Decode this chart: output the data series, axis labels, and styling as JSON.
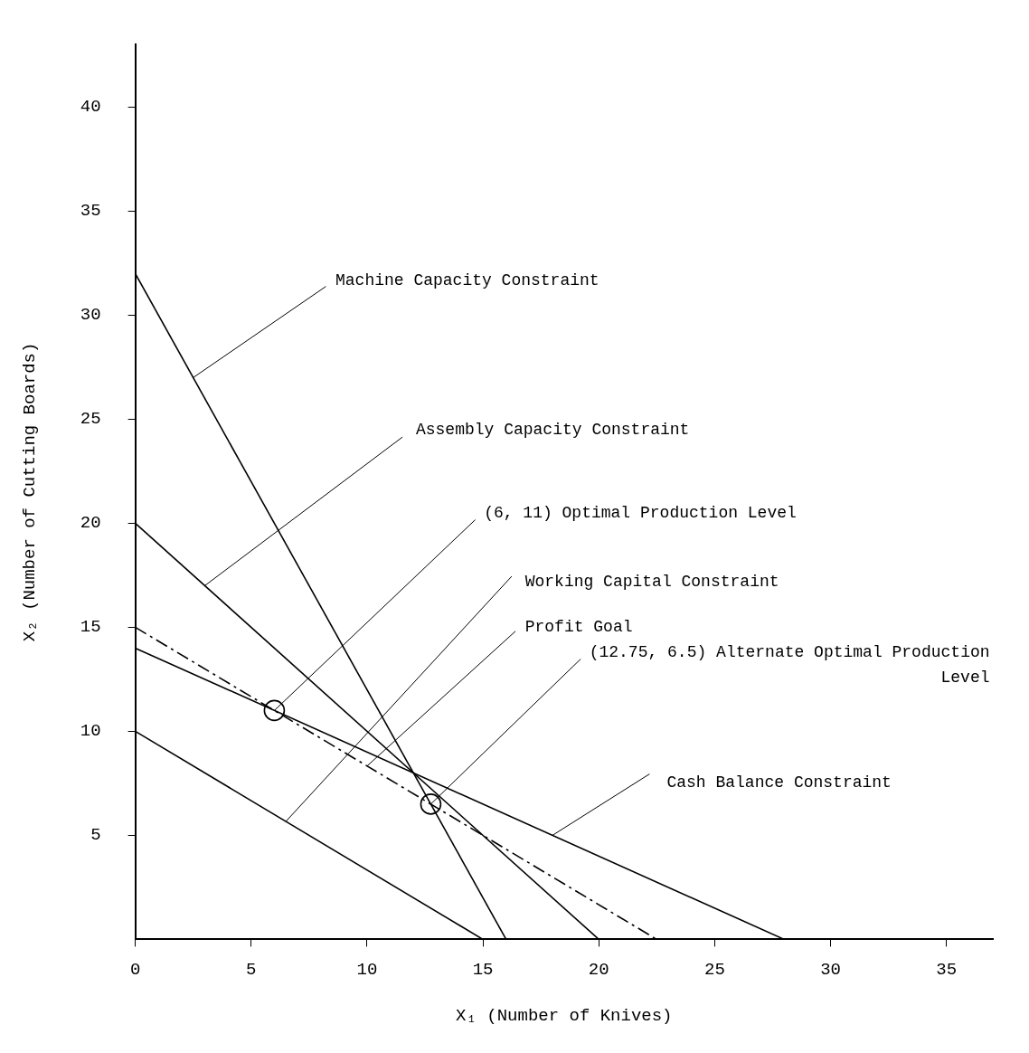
{
  "chart_data": {
    "type": "line",
    "xlabel": "X₁ (Number of Knives)",
    "ylabel": "X₂ (Number of Cutting Boards)",
    "xlim": [
      0,
      37
    ],
    "ylim": [
      0,
      43
    ],
    "xticks": [
      0,
      5,
      10,
      15,
      20,
      25,
      30,
      35
    ],
    "yticks": [
      5,
      10,
      15,
      20,
      25,
      30,
      35,
      40
    ],
    "grid": false,
    "legend": false,
    "marker": "none",
    "line_style": "solid",
    "series": [
      {
        "type": "line",
        "color": "#000000",
        "x": [
          0,
          16
        ],
        "values": [
          32,
          0
        ]
      },
      {
        "type": "line",
        "color": "#000000",
        "x": [
          0,
          20
        ],
        "values": [
          20,
          0
        ]
      },
      {
        "type": "line",
        "color": "#000000",
        "x": [
          0,
          22.5
        ],
        "values": [
          15,
          0
        ],
        "line_style": "dashed"
      },
      {
        "type": "line",
        "color": "#000000",
        "x": [
          0,
          28
        ],
        "values": [
          14,
          0
        ]
      },
      {
        "type": "line",
        "color": "#000000",
        "x": [
          0,
          15
        ],
        "values": [
          10,
          0
        ]
      },
      {
        "type": "scatter",
        "color": "#000000",
        "x": [
          6,
          12.75
        ],
        "values": [
          11,
          6.5
        ],
        "marker": "circle"
      }
    ],
    "annotations": [
      {
        "text": "Machine Capacity Constraint",
        "x": 2.5,
        "y": 27
      },
      {
        "text": "Assembly Capacity Constraint",
        "x": 3,
        "y": 17
      },
      {
        "text": "(6, 11) Optimal Production Level",
        "x": 6,
        "y": 11
      },
      {
        "text": "Working Capital Constraint",
        "x": 6.5,
        "y": 5.67
      },
      {
        "text": "Profit Goal",
        "x": 10,
        "y": 8.33
      },
      {
        "text": "(12.75, 6.5) Alternate Optimal Production Level",
        "x": 12.75,
        "y": 6.5
      },
      {
        "text": "Cash Balance Constraint",
        "x": 18,
        "y": 5
      }
    ]
  }
}
